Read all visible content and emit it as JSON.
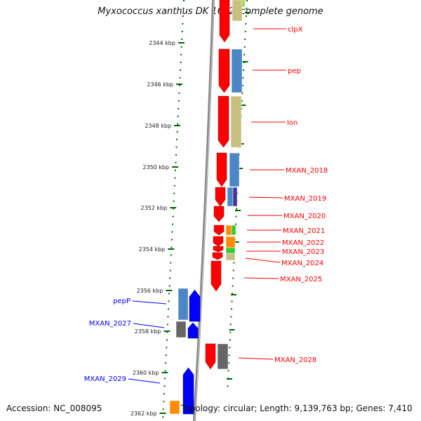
{
  "title": "Myxococcus xanthus DK 1622, complete genome",
  "accession_text": "Accession: NC_008095",
  "topology_text": "Topology: circular; Length: 9,139,763 bp; Genes: 7,410",
  "ruler_ticks": [
    "2344 kbp",
    "2346 kbp",
    "2348 kbp",
    "2350 kbp",
    "2352 kbp",
    "2354 kbp",
    "2356 kbp",
    "2358 kbp",
    "2360 kbp",
    "2362 kbp"
  ],
  "forward_genes": [
    "clpX",
    "pep",
    "lon",
    "MXAN_2018",
    "MXAN_2019",
    "MXAN_2020",
    "MXAN_2021",
    "MXAN_2022",
    "MXAN_2023",
    "MXAN_2024",
    "MXAN_2025",
    "MXAN_2028"
  ],
  "reverse_genes": [
    "pepP",
    "MXAN_2027",
    "MXAN_2029"
  ],
  "colors": {
    "forward_gene": "#ff0000",
    "reverse_gene": "#0000ff",
    "tick": "#006600",
    "backbone": "#888888"
  }
}
